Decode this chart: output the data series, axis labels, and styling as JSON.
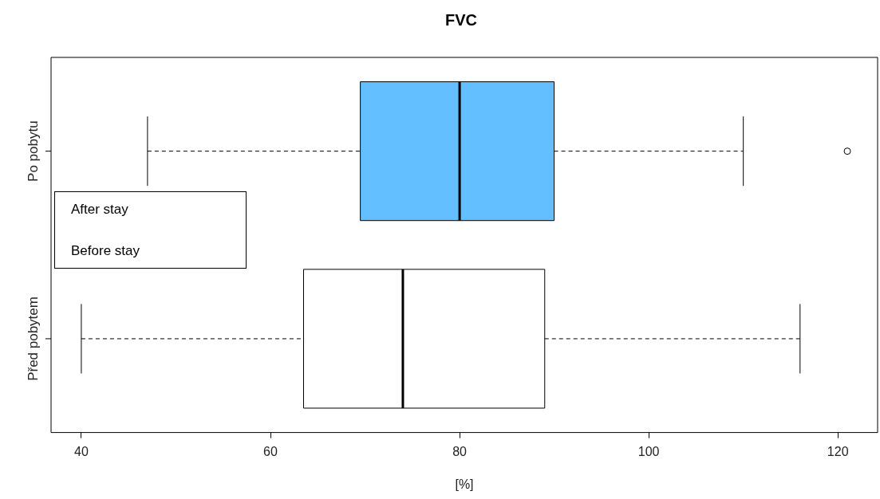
{
  "chart_data": {
    "type": "box",
    "title": "FVC",
    "xlabel": "[%]",
    "orientation": "horizontal",
    "categories": [
      "Po pobytu",
      "Před pobytem"
    ],
    "boxes": [
      {
        "low": 47,
        "q1": 69.5,
        "median": 80,
        "q3": 90,
        "high": 110,
        "outliers": [
          121
        ]
      },
      {
        "low": 40,
        "q1": 63.5,
        "median": 74,
        "q3": 89,
        "high": 116
      }
    ],
    "colors": [
      "#63bfff",
      "#ffffff"
    ],
    "xlim": [
      36.8,
      124.2
    ],
    "xticks": [
      40,
      60,
      80,
      100,
      120
    ],
    "annotations": [
      "After stay",
      "Before stay"
    ]
  }
}
